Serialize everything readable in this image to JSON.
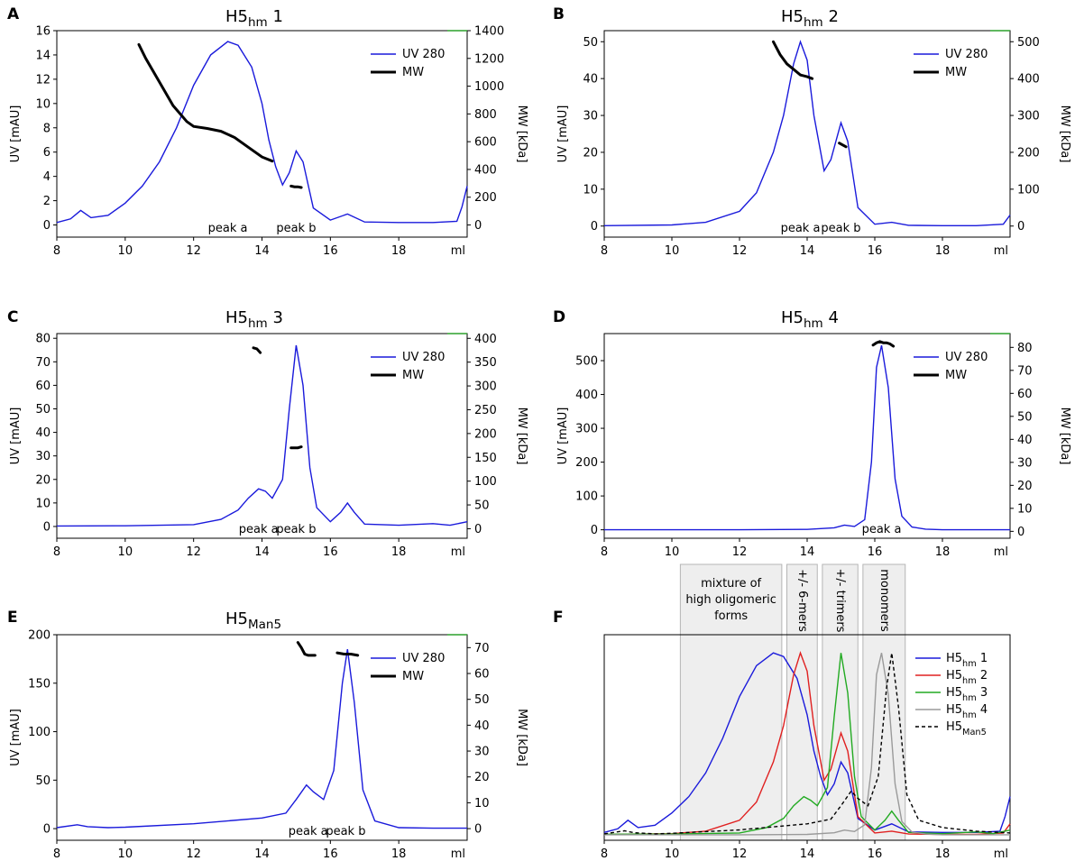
{
  "figure": {
    "x_label": "ml",
    "x_ticks": [
      8,
      10,
      12,
      14,
      16,
      18
    ],
    "x_range": [
      8,
      20
    ],
    "legend_uv": "UV 280",
    "legend_mw": "MW",
    "colors": {
      "uv": "#1a1adb",
      "mw": "#000000",
      "green_mark": "#2ca02c"
    }
  },
  "chart_data": [
    {
      "panel": "A",
      "type": "line",
      "title": {
        "base": "H5",
        "sub": "hm",
        "suffix": " 1"
      },
      "xlabel": "ml",
      "ylabel": "UV [mAU]",
      "y2label": "MW [kDa]",
      "ylim": [
        -1,
        16
      ],
      "y_ticks": [
        0,
        2,
        4,
        6,
        8,
        10,
        12,
        14,
        16
      ],
      "y2lim": [
        -87.5,
        1400
      ],
      "y2_ticks": [
        0,
        200,
        400,
        600,
        800,
        1000,
        1200,
        1400
      ],
      "uv": {
        "x": [
          8,
          8.4,
          8.7,
          9,
          9.5,
          10,
          10.5,
          11,
          11.5,
          12,
          12.5,
          13,
          13.3,
          13.7,
          14,
          14.2,
          14.4,
          14.6,
          14.8,
          15,
          15.2,
          15.5,
          16,
          16.5,
          17,
          18,
          19,
          19.7,
          19.85,
          20
        ],
        "y": [
          0.2,
          0.5,
          1.2,
          0.6,
          0.8,
          1.8,
          3.2,
          5.2,
          8,
          11.5,
          14,
          15.1,
          14.8,
          13,
          10,
          7,
          4.8,
          3.3,
          4.3,
          6.1,
          5.2,
          1.4,
          0.4,
          0.9,
          0.25,
          0.2,
          0.2,
          0.3,
          1.5,
          3.2
        ]
      },
      "mw": [
        {
          "x": [
            10.4,
            10.6,
            11,
            11.4,
            11.8,
            12,
            12.4,
            12.8,
            13.2,
            13.6,
            14,
            14.3
          ],
          "y": [
            1300,
            1200,
            1030,
            860,
            745,
            710,
            695,
            675,
            630,
            560,
            490,
            460
          ]
        },
        {
          "x": [
            14.85,
            14.95,
            15.05,
            15.15
          ],
          "y": [
            280,
            275,
            275,
            270
          ]
        }
      ],
      "annotations": [
        {
          "text": "peak a",
          "x": 13.0
        },
        {
          "text": "peak b",
          "x": 15.0
        }
      ]
    },
    {
      "panel": "B",
      "type": "line",
      "title": {
        "base": "H5",
        "sub": "hm",
        "suffix": " 2"
      },
      "xlabel": "ml",
      "ylabel": "UV [mAU]",
      "y2label": "MW [kDa]",
      "ylim": [
        -3,
        53
      ],
      "y_ticks": [
        0,
        10,
        20,
        30,
        40,
        50
      ],
      "y2lim": [
        -30,
        530
      ],
      "y2_ticks": [
        0,
        100,
        200,
        300,
        400,
        500
      ],
      "uv": {
        "x": [
          8,
          10,
          11,
          12,
          12.5,
          13,
          13.3,
          13.6,
          13.8,
          14,
          14.2,
          14.5,
          14.7,
          15,
          15.2,
          15.5,
          16,
          16.5,
          17,
          18,
          19,
          19.8,
          20
        ],
        "y": [
          0.1,
          0.3,
          1,
          4,
          9,
          20,
          30,
          44,
          50,
          45,
          30,
          15,
          18,
          28,
          23,
          5,
          0.5,
          1,
          0.2,
          0.1,
          0.1,
          0.5,
          3
        ]
      },
      "mw": [
        {
          "x": [
            13.0,
            13.2,
            13.4,
            13.6,
            13.8,
            14.0,
            14.15
          ],
          "y": [
            500,
            465,
            440,
            425,
            410,
            405,
            400
          ]
        },
        {
          "x": [
            14.95,
            15.05,
            15.15
          ],
          "y": [
            225,
            220,
            215
          ]
        }
      ],
      "annotations": [
        {
          "text": "peak a",
          "x": 13.8
        },
        {
          "text": "peak b",
          "x": 15.0
        }
      ]
    },
    {
      "panel": "C",
      "type": "line",
      "title": {
        "base": "H5",
        "sub": "hm",
        "suffix": " 3"
      },
      "xlabel": "ml",
      "ylabel": "UV [mAU]",
      "y2label": "MW [kDa]",
      "ylim": [
        -5,
        82
      ],
      "y_ticks": [
        0,
        10,
        20,
        30,
        40,
        50,
        60,
        70,
        80
      ],
      "y2lim": [
        -20,
        410
      ],
      "y2_ticks": [
        0,
        50,
        100,
        150,
        200,
        250,
        300,
        350,
        400
      ],
      "uv": {
        "x": [
          8,
          10,
          12,
          12.8,
          13.3,
          13.6,
          13.9,
          14.1,
          14.3,
          14.6,
          14.8,
          15.0,
          15.2,
          15.4,
          15.6,
          16.0,
          16.3,
          16.5,
          16.7,
          17,
          18,
          19,
          19.5,
          20
        ],
        "y": [
          0.2,
          0.3,
          0.8,
          3,
          7,
          12,
          16,
          15,
          12,
          20,
          50,
          77,
          60,
          25,
          8,
          2,
          6,
          10,
          6,
          1,
          0.5,
          1.2,
          0.5,
          2
        ]
      },
      "mw": [
        {
          "x": [
            13.75,
            13.85,
            13.95
          ],
          "y": [
            380,
            378,
            370
          ]
        },
        {
          "x": [
            14.85,
            14.95,
            15.05,
            15.15
          ],
          "y": [
            170,
            170,
            170,
            172
          ]
        }
      ],
      "annotations": [
        {
          "text": "peak a",
          "x": 13.9
        },
        {
          "text": "peak b",
          "x": 15.0
        }
      ]
    },
    {
      "panel": "D",
      "type": "line",
      "title": {
        "base": "H5",
        "sub": "hm",
        "suffix": " 4"
      },
      "xlabel": "ml",
      "ylabel": "UV [mAU]",
      "y2label": "MW [kDa]",
      "ylim": [
        -25,
        580
      ],
      "y_ticks": [
        0,
        100,
        200,
        300,
        400,
        500
      ],
      "y2lim": [
        -3,
        86
      ],
      "y2_ticks": [
        0,
        10,
        20,
        30,
        40,
        50,
        60,
        70,
        80
      ],
      "uv": {
        "x": [
          8,
          12,
          14,
          14.8,
          15.1,
          15.4,
          15.7,
          15.9,
          16.05,
          16.2,
          16.4,
          16.6,
          16.8,
          17.1,
          17.5,
          18,
          20
        ],
        "y": [
          0,
          0,
          1,
          6,
          14,
          10,
          30,
          200,
          480,
          545,
          420,
          150,
          40,
          8,
          2,
          0,
          0
        ]
      },
      "mw": [
        {
          "x": [
            15.95,
            16.05,
            16.15,
            16.25,
            16.35,
            16.45,
            16.55
          ],
          "y": [
            81,
            82,
            82.5,
            82,
            82,
            81.5,
            80.5
          ]
        }
      ],
      "annotations": [
        {
          "text": "peak a",
          "x": 16.2
        }
      ]
    },
    {
      "panel": "E",
      "type": "line",
      "title": {
        "base": "H5",
        "sub": "Man5",
        "suffix": ""
      },
      "xlabel": "ml",
      "ylabel": "UV [mAU]",
      "y2label": "MW [kDa]",
      "ylim": [
        -12,
        200
      ],
      "y_ticks": [
        0,
        50,
        100,
        150,
        200
      ],
      "y2lim": [
        -4.5,
        75
      ],
      "y2_ticks": [
        0,
        10,
        20,
        30,
        40,
        50,
        60,
        70
      ],
      "uv": {
        "x": [
          8,
          8.6,
          8.9,
          9.5,
          10,
          12,
          14,
          14.7,
          15.0,
          15.3,
          15.5,
          15.8,
          16.1,
          16.35,
          16.5,
          16.7,
          16.95,
          17.3,
          18,
          19,
          20
        ],
        "y": [
          1,
          4,
          2,
          1,
          1.5,
          5,
          11,
          16,
          30,
          45,
          38,
          30,
          60,
          150,
          185,
          130,
          40,
          8,
          1,
          0.5,
          0.5
        ]
      },
      "mw": [
        {
          "x": [
            15.05,
            15.15,
            15.25,
            15.35,
            15.55
          ],
          "y": [
            72,
            70,
            67.5,
            67,
            67
          ]
        },
        {
          "x": [
            16.2,
            16.4,
            16.6,
            16.8
          ],
          "y": [
            68,
            67.5,
            67.5,
            67
          ]
        }
      ],
      "annotations": [
        {
          "text": "peak a",
          "x": 15.35
        },
        {
          "text": "peak b",
          "x": 16.45
        }
      ]
    },
    {
      "panel": "F",
      "type": "line",
      "xlabel": "ml",
      "ylim": [
        -0.03,
        1.1
      ],
      "regions": [
        {
          "label": "mixture of\nhigh oligomeric\nforms",
          "x0": 10.25,
          "x1": 13.25,
          "rotated": false
        },
        {
          "label": "+/- 6-mers",
          "x0": 13.4,
          "x1": 14.3,
          "rotated": true
        },
        {
          "label": "+/- trimers",
          "x0": 14.45,
          "x1": 15.5,
          "rotated": true
        },
        {
          "label": "monomers",
          "x0": 15.65,
          "x1": 16.9,
          "rotated": true
        }
      ],
      "series": [
        {
          "name": {
            "base": "H5",
            "sub": "hm",
            "suffix": " 1"
          },
          "color": "#1a1adb",
          "dash": false,
          "x": [
            8,
            8.4,
            8.7,
            9,
            9.5,
            10,
            10.5,
            11,
            11.5,
            12,
            12.5,
            13,
            13.3,
            13.7,
            14,
            14.2,
            14.4,
            14.6,
            14.8,
            15,
            15.2,
            15.5,
            16,
            16.5,
            17,
            18,
            19,
            19.7,
            19.85,
            20
          ],
          "y": [
            0.013,
            0.033,
            0.08,
            0.04,
            0.053,
            0.12,
            0.21,
            0.34,
            0.53,
            0.76,
            0.93,
            1.0,
            0.98,
            0.86,
            0.66,
            0.46,
            0.32,
            0.22,
            0.28,
            0.4,
            0.34,
            0.09,
            0.026,
            0.06,
            0.016,
            0.013,
            0.013,
            0.02,
            0.1,
            0.21
          ]
        },
        {
          "name": {
            "base": "H5",
            "sub": "hm",
            "suffix": " 2"
          },
          "color": "#e02020",
          "dash": false,
          "x": [
            8,
            10,
            11,
            12,
            12.5,
            13,
            13.3,
            13.6,
            13.8,
            14,
            14.2,
            14.5,
            14.7,
            15,
            15.2,
            15.5,
            16,
            16.5,
            17,
            18,
            19,
            19.8,
            20
          ],
          "y": [
            0.002,
            0.006,
            0.02,
            0.08,
            0.18,
            0.4,
            0.6,
            0.88,
            1.0,
            0.9,
            0.6,
            0.3,
            0.36,
            0.56,
            0.46,
            0.1,
            0.01,
            0.02,
            0.004,
            0.002,
            0.002,
            0.01,
            0.06
          ]
        },
        {
          "name": {
            "base": "H5",
            "sub": "hm",
            "suffix": " 3"
          },
          "color": "#22aa22",
          "dash": false,
          "x": [
            8,
            10,
            12,
            12.8,
            13.3,
            13.6,
            13.9,
            14.1,
            14.3,
            14.6,
            14.8,
            15.0,
            15.2,
            15.4,
            15.6,
            16.0,
            16.3,
            16.5,
            16.7,
            17,
            18,
            19,
            19.5,
            20
          ],
          "y": [
            0.003,
            0.004,
            0.01,
            0.04,
            0.09,
            0.16,
            0.21,
            0.19,
            0.16,
            0.26,
            0.65,
            1.0,
            0.78,
            0.32,
            0.1,
            0.026,
            0.08,
            0.13,
            0.08,
            0.013,
            0.006,
            0.016,
            0.006,
            0.026
          ]
        },
        {
          "name": {
            "base": "H5",
            "sub": "hm",
            "suffix": " 4"
          },
          "color": "#9a9a9a",
          "dash": false,
          "x": [
            8,
            12,
            14,
            14.8,
            15.1,
            15.4,
            15.7,
            15.9,
            16.05,
            16.2,
            16.4,
            16.6,
            16.8,
            17.1,
            17.5,
            18,
            20
          ],
          "y": [
            0,
            0,
            0.002,
            0.011,
            0.026,
            0.018,
            0.055,
            0.37,
            0.88,
            1.0,
            0.77,
            0.28,
            0.073,
            0.015,
            0.004,
            0,
            0
          ]
        },
        {
          "name": {
            "base": "H5",
            "sub": "Man5",
            "suffix": ""
          },
          "color": "#000000",
          "dash": true,
          "x": [
            8,
            8.6,
            8.9,
            9.5,
            10,
            12,
            14,
            14.7,
            15.0,
            15.3,
            15.5,
            15.8,
            16.1,
            16.35,
            16.5,
            16.7,
            16.95,
            17.3,
            18,
            19,
            20
          ],
          "y": [
            0.005,
            0.022,
            0.011,
            0.005,
            0.008,
            0.027,
            0.06,
            0.086,
            0.16,
            0.24,
            0.2,
            0.16,
            0.32,
            0.81,
            1.0,
            0.7,
            0.22,
            0.08,
            0.04,
            0.02,
            0.01
          ]
        }
      ]
    }
  ]
}
